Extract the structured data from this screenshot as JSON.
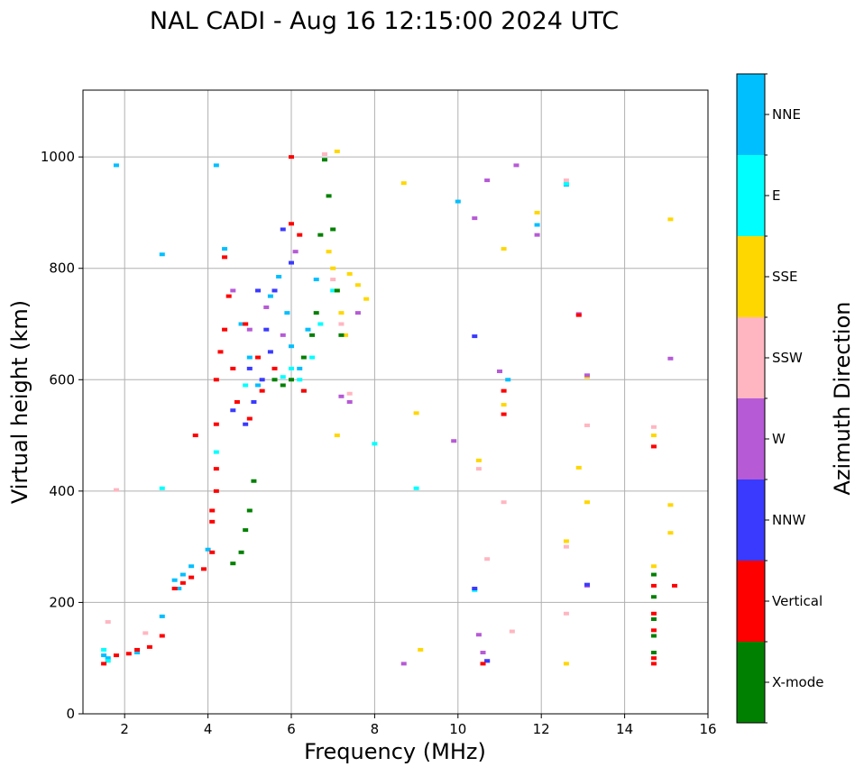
{
  "chart_data": {
    "type": "scatter",
    "title": "NAL CADI - Aug 16 12:15:00 2024 UTC",
    "xlabel": "Frequency (MHz)",
    "ylabel": "Virtual height (km)",
    "xlim": [
      1,
      16
    ],
    "ylim": [
      0,
      1120
    ],
    "xticks": [
      2,
      4,
      6,
      8,
      10,
      12,
      14,
      16
    ],
    "yticks": [
      0,
      200,
      400,
      600,
      800,
      1000
    ],
    "grid": true,
    "colorbar": {
      "label": "Azimuth Direction",
      "categories": [
        {
          "name": "X-mode",
          "color": "#008000"
        },
        {
          "name": "Vertical",
          "color": "#ff0000"
        },
        {
          "name": "NNW",
          "color": "#3a3aff"
        },
        {
          "name": "W",
          "color": "#b65ad6"
        },
        {
          "name": "SSW",
          "color": "#ffb6c1"
        },
        {
          "name": "SSE",
          "color": "#ffd700"
        },
        {
          "name": "E",
          "color": "#00ffff"
        },
        {
          "name": "NNE",
          "color": "#00bfff"
        }
      ]
    },
    "series": [
      {
        "name": "NNE",
        "points": [
          [
            1.5,
            105
          ],
          [
            1.6,
            100
          ],
          [
            1.8,
            985
          ],
          [
            2.3,
            110
          ],
          [
            2.9,
            825
          ],
          [
            2.9,
            175
          ],
          [
            3.2,
            240
          ],
          [
            3.3,
            225
          ],
          [
            3.4,
            250
          ],
          [
            3.6,
            265
          ],
          [
            4.0,
            295
          ],
          [
            4.2,
            985
          ],
          [
            4.4,
            835
          ],
          [
            4.8,
            700
          ],
          [
            5.0,
            640
          ],
          [
            5.2,
            590
          ],
          [
            5.5,
            750
          ],
          [
            5.7,
            785
          ],
          [
            5.9,
            720
          ],
          [
            6.0,
            660
          ],
          [
            6.2,
            620
          ],
          [
            6.4,
            690
          ],
          [
            6.6,
            780
          ],
          [
            10.0,
            920
          ],
          [
            11.2,
            600
          ],
          [
            11.9,
            878
          ],
          [
            12.6,
            950
          ]
        ]
      },
      {
        "name": "E",
        "points": [
          [
            1.5,
            115
          ],
          [
            1.6,
            95
          ],
          [
            2.9,
            405
          ],
          [
            4.2,
            470
          ],
          [
            4.9,
            590
          ],
          [
            5.8,
            605
          ],
          [
            6.0,
            620
          ],
          [
            6.2,
            600
          ],
          [
            6.3,
            580
          ],
          [
            6.5,
            640
          ],
          [
            6.7,
            700
          ],
          [
            7.0,
            760
          ],
          [
            8.0,
            485
          ],
          [
            9.0,
            405
          ],
          [
            10.4,
            222
          ],
          [
            12.6,
            952
          ]
        ]
      },
      {
        "name": "SSE",
        "points": [
          [
            6.9,
            830
          ],
          [
            7.0,
            800
          ],
          [
            7.1,
            760
          ],
          [
            7.2,
            720
          ],
          [
            7.3,
            680
          ],
          [
            7.4,
            790
          ],
          [
            7.6,
            770
          ],
          [
            7.8,
            745
          ],
          [
            7.1,
            1010
          ],
          [
            7.1,
            500
          ],
          [
            8.7,
            953
          ],
          [
            9.0,
            540
          ],
          [
            9.1,
            115
          ],
          [
            10.5,
            455
          ],
          [
            11.1,
            835
          ],
          [
            11.1,
            555
          ],
          [
            11.9,
            900
          ],
          [
            12.6,
            310
          ],
          [
            12.6,
            90
          ],
          [
            12.9,
            442
          ],
          [
            13.1,
            380
          ],
          [
            13.1,
            605
          ],
          [
            14.7,
            265
          ],
          [
            14.7,
            500
          ],
          [
            15.1,
            888
          ],
          [
            15.1,
            375
          ],
          [
            15.1,
            325
          ]
        ]
      },
      {
        "name": "SSW",
        "points": [
          [
            1.6,
            165
          ],
          [
            1.8,
            402
          ],
          [
            2.5,
            145
          ],
          [
            6.8,
            1005
          ],
          [
            7.0,
            780
          ],
          [
            7.2,
            700
          ],
          [
            7.4,
            575
          ],
          [
            10.5,
            440
          ],
          [
            10.7,
            278
          ],
          [
            11.1,
            380
          ],
          [
            11.3,
            148
          ],
          [
            12.6,
            180
          ],
          [
            12.6,
            300
          ],
          [
            12.6,
            958
          ],
          [
            13.1,
            518
          ],
          [
            14.7,
            515
          ],
          [
            14.7,
            480
          ]
        ]
      },
      {
        "name": "W",
        "points": [
          [
            4.6,
            760
          ],
          [
            5.0,
            690
          ],
          [
            5.4,
            730
          ],
          [
            5.8,
            680
          ],
          [
            6.1,
            830
          ],
          [
            7.2,
            570
          ],
          [
            7.4,
            560
          ],
          [
            7.6,
            720
          ],
          [
            8.7,
            90
          ],
          [
            9.9,
            490
          ],
          [
            10.4,
            890
          ],
          [
            10.5,
            142
          ],
          [
            10.6,
            110
          ],
          [
            10.7,
            958
          ],
          [
            10.7,
            95
          ],
          [
            11.0,
            615
          ],
          [
            11.4,
            985
          ],
          [
            11.9,
            860
          ],
          [
            12.9,
            718
          ],
          [
            13.1,
            230
          ],
          [
            13.1,
            608
          ],
          [
            15.1,
            638
          ]
        ]
      },
      {
        "name": "NNW",
        "points": [
          [
            4.6,
            545
          ],
          [
            4.9,
            520
          ],
          [
            5.1,
            560
          ],
          [
            5.3,
            600
          ],
          [
            5.4,
            690
          ],
          [
            5.5,
            650
          ],
          [
            5.6,
            760
          ],
          [
            5.8,
            870
          ],
          [
            6.0,
            810
          ],
          [
            5.2,
            760
          ],
          [
            5.0,
            620
          ],
          [
            10.4,
            225
          ],
          [
            10.4,
            678
          ],
          [
            10.7,
            95
          ],
          [
            13.1,
            232
          ]
        ]
      },
      {
        "name": "Vertical",
        "points": [
          [
            1.5,
            90
          ],
          [
            1.8,
            105
          ],
          [
            2.1,
            108
          ],
          [
            2.3,
            115
          ],
          [
            2.6,
            120
          ],
          [
            2.9,
            140
          ],
          [
            3.2,
            225
          ],
          [
            3.4,
            235
          ],
          [
            3.6,
            245
          ],
          [
            3.9,
            260
          ],
          [
            4.1,
            290
          ],
          [
            4.1,
            345
          ],
          [
            4.1,
            365
          ],
          [
            4.2,
            400
          ],
          [
            4.2,
            440
          ],
          [
            3.7,
            500
          ],
          [
            4.2,
            520
          ],
          [
            4.2,
            600
          ],
          [
            4.3,
            650
          ],
          [
            4.4,
            690
          ],
          [
            4.4,
            820
          ],
          [
            4.5,
            750
          ],
          [
            4.6,
            620
          ],
          [
            4.7,
            560
          ],
          [
            4.9,
            700
          ],
          [
            5.0,
            530
          ],
          [
            5.2,
            640
          ],
          [
            5.3,
            580
          ],
          [
            5.6,
            620
          ],
          [
            6.0,
            1000
          ],
          [
            6.0,
            880
          ],
          [
            6.2,
            860
          ],
          [
            6.3,
            580
          ],
          [
            10.6,
            90
          ],
          [
            11.1,
            580
          ],
          [
            11.1,
            538
          ],
          [
            12.9,
            716
          ],
          [
            14.7,
            90
          ],
          [
            14.7,
            100
          ],
          [
            14.7,
            150
          ],
          [
            14.7,
            180
          ],
          [
            14.7,
            230
          ],
          [
            15.2,
            230
          ],
          [
            14.7,
            480
          ]
        ]
      },
      {
        "name": "X-mode",
        "points": [
          [
            4.6,
            270
          ],
          [
            4.8,
            290
          ],
          [
            4.9,
            330
          ],
          [
            5.0,
            365
          ],
          [
            5.1,
            418
          ],
          [
            5.6,
            600
          ],
          [
            5.8,
            590
          ],
          [
            6.0,
            600
          ],
          [
            6.3,
            640
          ],
          [
            6.5,
            680
          ],
          [
            6.6,
            720
          ],
          [
            6.7,
            860
          ],
          [
            6.8,
            995
          ],
          [
            6.9,
            930
          ],
          [
            7.0,
            870
          ],
          [
            7.1,
            760
          ],
          [
            7.2,
            680
          ],
          [
            14.7,
            110
          ],
          [
            14.7,
            140
          ],
          [
            14.7,
            170
          ],
          [
            14.7,
            210
          ],
          [
            14.7,
            250
          ]
        ]
      }
    ]
  }
}
